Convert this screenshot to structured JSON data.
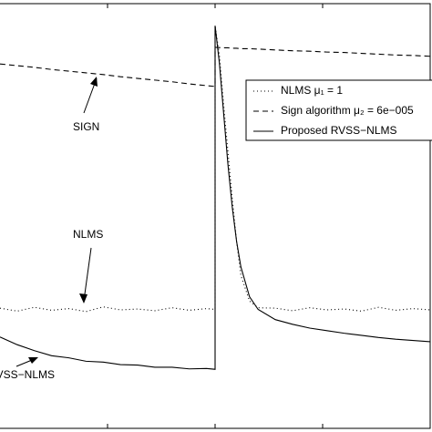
{
  "chart_data": {
    "type": "line",
    "x": [
      0,
      4,
      8,
      12,
      16,
      20,
      24,
      28,
      32,
      36,
      40,
      44,
      48,
      50,
      50,
      51,
      52,
      53,
      54,
      55,
      56,
      58,
      60,
      64,
      68,
      72,
      76,
      80,
      84,
      88,
      92,
      96,
      100
    ],
    "xlim": [
      0,
      100
    ],
    "ylim": [
      0,
      100
    ],
    "xticks": [
      25,
      50,
      75
    ],
    "series": [
      {
        "name": "NLMS μ₁ = 1",
        "color": "#000000",
        "dash": "dotted",
        "values": [
          28.3,
          27.6,
          28.5,
          27.8,
          28.2,
          27.5,
          28.6,
          27.9,
          28.1,
          27.7,
          28.4,
          27.8,
          28.2,
          28.0,
          94.8,
          88,
          76,
          65,
          54,
          44,
          36,
          30,
          28.4,
          28.3,
          27.7,
          28.4,
          27.9,
          28.1,
          27.6,
          28.5,
          27.8,
          28.2,
          27.9
        ]
      },
      {
        "name": "Sign algorithm μ₂ = 6e−005",
        "color": "#000000",
        "dash": "dashed",
        "values": [
          85.8,
          85.4,
          85.0,
          84.5,
          84.1,
          83.7,
          83.3,
          82.8,
          82.4,
          82.0,
          81.6,
          81.1,
          80.7,
          80.5,
          89.7,
          89.66,
          89.6,
          89.6,
          89.5,
          89.5,
          89.4,
          89.4,
          89.3,
          89.1,
          88.9,
          88.8,
          88.6,
          88.5,
          88.3,
          88.1,
          87.9,
          87.8,
          87.6
        ]
      },
      {
        "name": "Proposed RVSS−NLMS",
        "color": "#000000",
        "dash": "solid",
        "values": [
          21.5,
          19.7,
          18.3,
          17.1,
          16.6,
          15.8,
          15.6,
          15.0,
          14.9,
          14.4,
          14.4,
          14.0,
          14.1,
          13.9,
          94.8,
          86,
          74,
          62,
          52,
          44,
          38,
          31,
          28,
          25.6,
          24.5,
          23.6,
          23.0,
          22.4,
          21.9,
          21.4,
          21.0,
          20.7,
          20.4
        ]
      }
    ],
    "annotations": [
      "SIGN",
      "NLMS",
      "RVSS−NLMS"
    ],
    "legend": "upper right"
  }
}
